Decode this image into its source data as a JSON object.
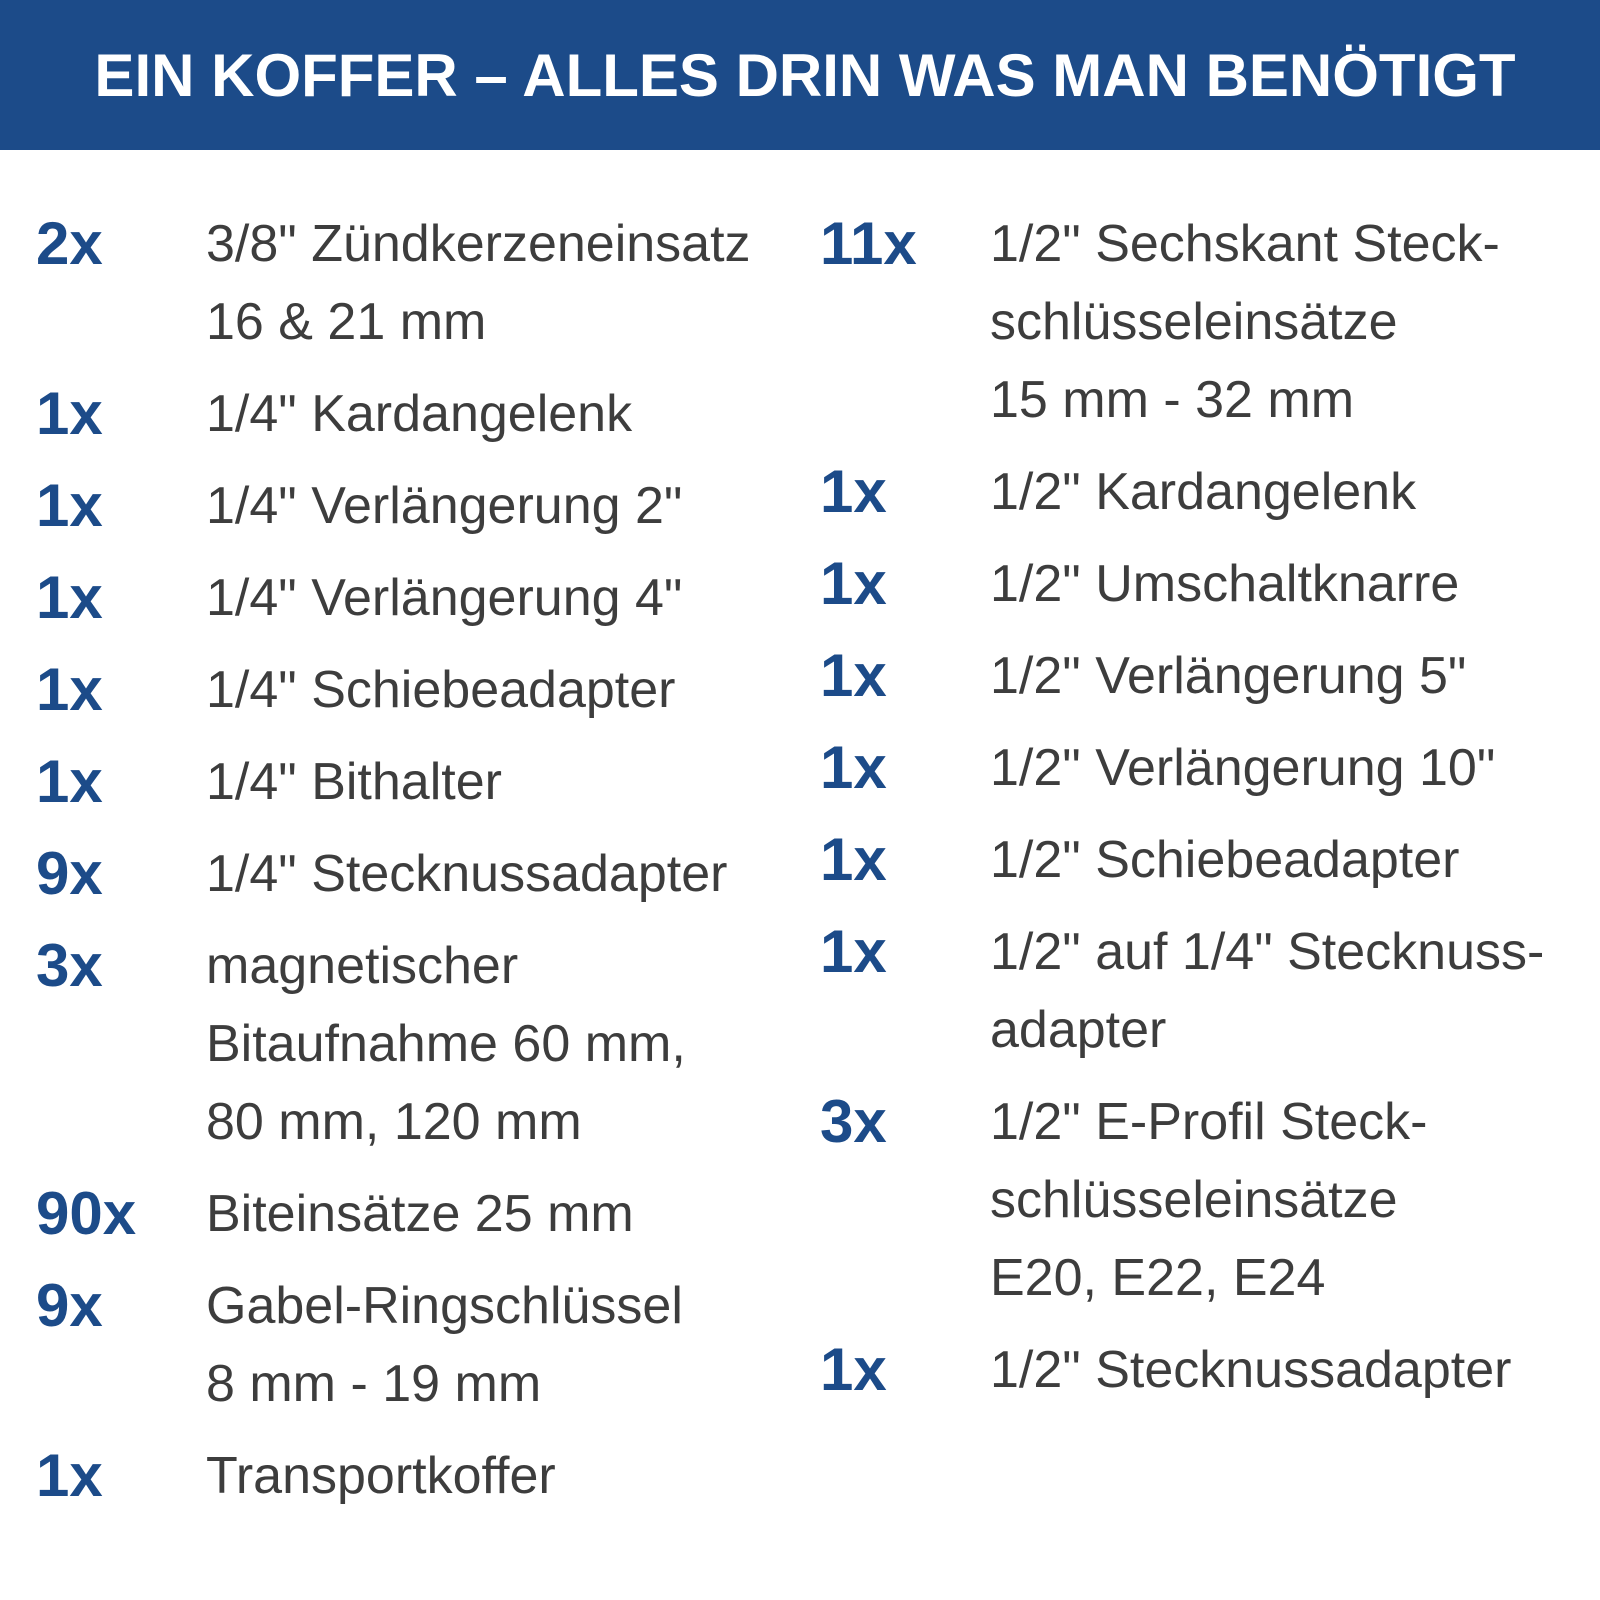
{
  "header": {
    "title": "EIN KOFFER – ALLES DRIN WAS MAN BENÖTIGT",
    "background_color": "#1c4b89"
  },
  "left_column": [
    {
      "qty": "2x",
      "lines": [
        "3/8\" Zündkerzeneinsatz",
        "16 & 21 mm"
      ]
    },
    {
      "qty": "1x",
      "lines": [
        "1/4\" Kardangelenk"
      ]
    },
    {
      "qty": "1x",
      "lines": [
        "1/4\" Verlängerung 2\""
      ]
    },
    {
      "qty": "1x",
      "lines": [
        "1/4\" Verlängerung 4\""
      ]
    },
    {
      "qty": "1x",
      "lines": [
        "1/4\" Schiebeadapter"
      ]
    },
    {
      "qty": "1x",
      "lines": [
        "1/4\" Bithalter"
      ]
    },
    {
      "qty": "9x",
      "lines": [
        "1/4\" Stecknussadapter"
      ]
    },
    {
      "qty": "3x",
      "lines": [
        "magnetischer",
        "Bitaufnahme 60 mm,",
        "80 mm, 120 mm"
      ]
    },
    {
      "qty": "90x",
      "lines": [
        "Biteinsätze 25 mm"
      ]
    },
    {
      "qty": "9x",
      "lines": [
        "Gabel-Ringschlüssel",
        "8 mm - 19 mm"
      ]
    },
    {
      "qty": "1x",
      "lines": [
        "Transportkoffer"
      ]
    }
  ],
  "right_column": [
    {
      "qty": "11x",
      "lines": [
        "1/2\" Sechskant Steck-",
        "schlüsseleinsätze",
        "15 mm - 32 mm"
      ]
    },
    {
      "qty": "1x",
      "lines": [
        "1/2\" Kardangelenk"
      ]
    },
    {
      "qty": "1x",
      "lines": [
        "1/2\" Umschaltknarre"
      ]
    },
    {
      "qty": "1x",
      "lines": [
        "1/2\" Verlängerung 5\""
      ]
    },
    {
      "qty": "1x",
      "lines": [
        "1/2\" Verlängerung 10\""
      ]
    },
    {
      "qty": "1x",
      "lines": [
        "1/2\" Schiebeadapter"
      ]
    },
    {
      "qty": "1x",
      "lines": [
        "1/2\" auf 1/4\" Stecknuss-",
        "adapter"
      ]
    },
    {
      "qty": "3x",
      "lines": [
        "1/2\" E-Profil Steck-",
        "schlüsseleinsätze",
        "E20, E22, E24"
      ]
    },
    {
      "qty": "1x",
      "lines": [
        "1/2\" Stecknussadapter"
      ]
    }
  ]
}
